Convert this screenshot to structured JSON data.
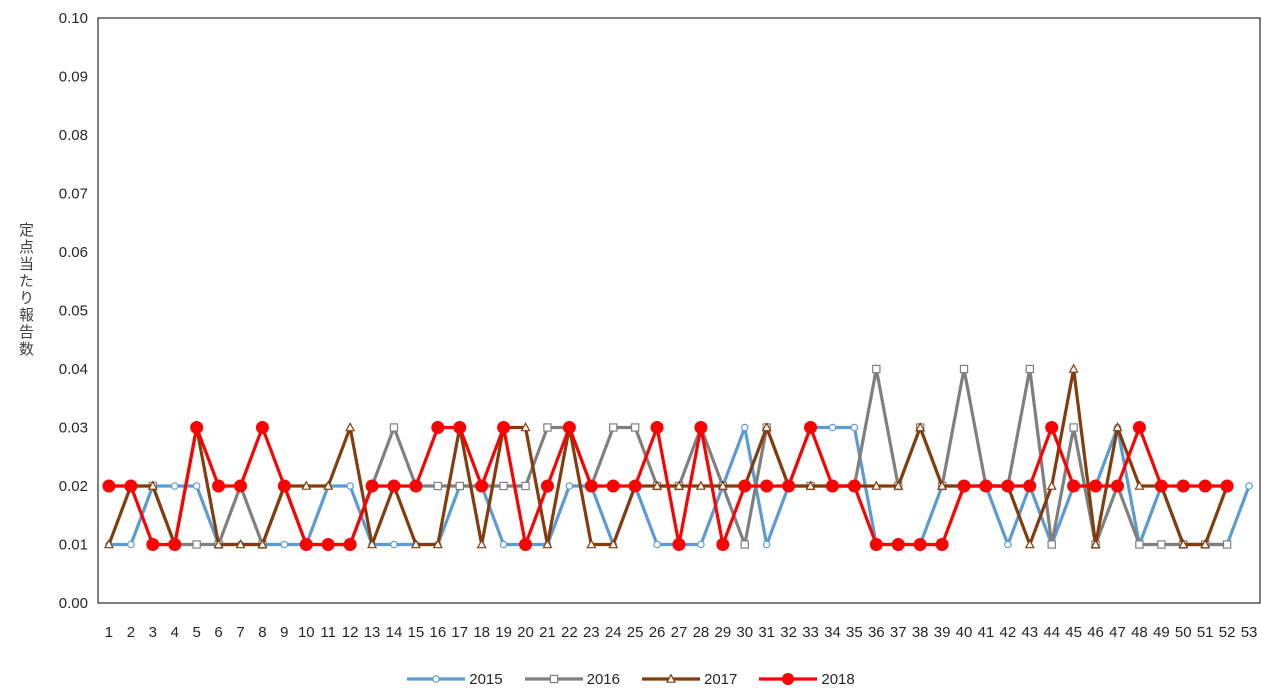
{
  "chart_data": {
    "type": "line",
    "ylabel": "定点当たり報告数",
    "ylim": [
      0,
      0.1
    ],
    "yticks": [
      "0.00",
      "0.01",
      "0.02",
      "0.03",
      "0.04",
      "0.05",
      "0.06",
      "0.07",
      "0.08",
      "0.09",
      "0.10"
    ],
    "x": [
      1,
      2,
      3,
      4,
      5,
      6,
      7,
      8,
      9,
      10,
      11,
      12,
      13,
      14,
      15,
      16,
      17,
      18,
      19,
      20,
      21,
      22,
      23,
      24,
      25,
      26,
      27,
      28,
      29,
      30,
      31,
      32,
      33,
      34,
      35,
      36,
      37,
      38,
      39,
      40,
      41,
      42,
      43,
      44,
      45,
      46,
      47,
      48,
      49,
      50,
      51,
      52,
      53
    ],
    "grid": false,
    "legend_position": "bottom",
    "series": [
      {
        "name": "2015",
        "color": "#5b9bd5",
        "marker": "circle-open",
        "values": [
          0.01,
          0.01,
          0.02,
          0.02,
          0.02,
          0.01,
          0.01,
          0.01,
          0.01,
          0.01,
          0.02,
          0.02,
          0.01,
          0.01,
          0.01,
          0.01,
          0.02,
          0.02,
          0.01,
          0.01,
          0.01,
          0.02,
          0.02,
          0.01,
          0.02,
          0.01,
          0.01,
          0.01,
          0.02,
          0.03,
          0.01,
          0.02,
          0.03,
          0.03,
          0.03,
          0.01,
          0.01,
          0.01,
          0.02,
          0.02,
          0.02,
          0.01,
          0.02,
          0.01,
          0.02,
          0.02,
          0.03,
          0.01,
          0.02,
          0.01,
          0.01,
          0.01,
          0.02
        ]
      },
      {
        "name": "2016",
        "color": "#7f7f7f",
        "marker": "square-open",
        "values": [
          0.02,
          0.02,
          0.02,
          0.01,
          0.01,
          0.01,
          0.02,
          0.01,
          0.02,
          0.01,
          0.01,
          0.01,
          0.02,
          0.03,
          0.02,
          0.02,
          0.02,
          0.02,
          0.02,
          0.02,
          0.03,
          0.03,
          0.02,
          0.03,
          0.03,
          0.02,
          0.02,
          0.03,
          0.02,
          0.01,
          0.03,
          0.02,
          0.02,
          0.02,
          0.02,
          0.04,
          0.02,
          0.03,
          0.02,
          0.04,
          0.02,
          0.02,
          0.04,
          0.01,
          0.03,
          0.01,
          0.02,
          0.01,
          0.01,
          0.01,
          0.01,
          0.01,
          null
        ]
      },
      {
        "name": "2017",
        "color": "#843c0c",
        "marker": "triangle-open",
        "values": [
          0.01,
          0.02,
          0.02,
          0.01,
          0.03,
          0.01,
          0.01,
          0.01,
          0.02,
          0.02,
          0.02,
          0.03,
          0.01,
          0.02,
          0.01,
          0.01,
          0.03,
          0.01,
          0.03,
          0.03,
          0.01,
          0.03,
          0.01,
          0.01,
          0.02,
          0.02,
          0.02,
          0.02,
          0.02,
          0.02,
          0.03,
          0.02,
          0.02,
          0.02,
          0.02,
          0.02,
          0.02,
          0.03,
          0.02,
          0.02,
          0.02,
          0.02,
          0.01,
          0.02,
          0.04,
          0.01,
          0.03,
          0.02,
          0.02,
          0.01,
          0.01,
          0.02,
          null
        ]
      },
      {
        "name": "2018",
        "color": "#ff0000",
        "marker": "circle-filled",
        "values": [
          0.02,
          0.02,
          0.01,
          0.01,
          0.03,
          0.02,
          0.02,
          0.03,
          0.02,
          0.01,
          0.01,
          0.01,
          0.02,
          0.02,
          0.02,
          0.03,
          0.03,
          0.02,
          0.03,
          0.01,
          0.02,
          0.03,
          0.02,
          0.02,
          0.02,
          0.03,
          0.01,
          0.03,
          0.01,
          0.02,
          0.02,
          0.02,
          0.03,
          0.02,
          0.02,
          0.01,
          0.01,
          0.01,
          0.01,
          0.02,
          0.02,
          0.02,
          0.02,
          0.03,
          0.02,
          0.02,
          0.02,
          0.03,
          0.02,
          0.02,
          0.02,
          0.02,
          null
        ]
      }
    ]
  }
}
